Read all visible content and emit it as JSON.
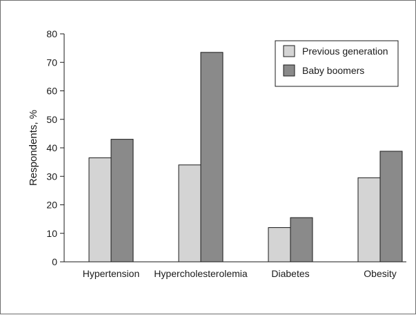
{
  "chart_data": {
    "type": "bar",
    "title": "",
    "xlabel": "",
    "ylabel": "Respondents, %",
    "ylim": [
      0,
      80
    ],
    "yticks": [
      0,
      10,
      20,
      30,
      40,
      50,
      60,
      70,
      80
    ],
    "categories": [
      "Hypertension",
      "Hypercholesterolemia",
      "Diabetes",
      "Obesity"
    ],
    "series": [
      {
        "name": "Previous generation",
        "values": [
          36.5,
          34,
          12,
          29.5
        ],
        "color": "#d4d4d4"
      },
      {
        "name": "Baby boomers",
        "values": [
          43,
          73.5,
          15.5,
          38.8
        ],
        "color": "#8a8a8a"
      }
    ],
    "grid": false,
    "legend_position": "top-right"
  }
}
